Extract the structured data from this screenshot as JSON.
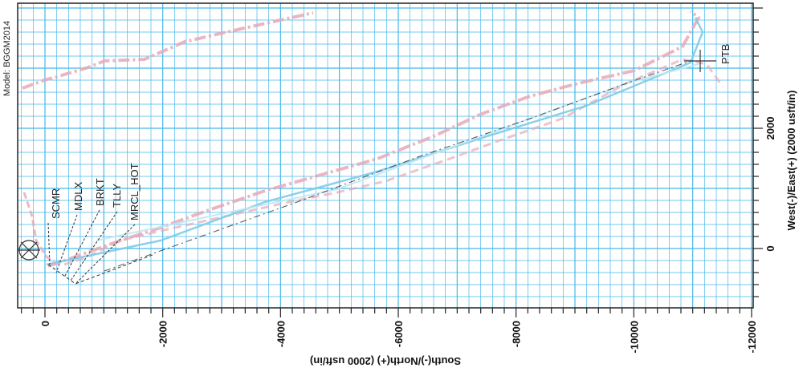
{
  "model_label": "Model: BGGM2014",
  "axes": {
    "x_label": "South(-)/North(+) (2000 usft/in)",
    "y_label": "West(-)/East(+) (2000 usft/in)",
    "x_ticks": [
      {
        "label": "0",
        "value": 0
      },
      {
        "label": "-2000",
        "value": -2000
      },
      {
        "label": "-4000",
        "value": -4000
      },
      {
        "label": "-6000",
        "value": -6000
      },
      {
        "label": "-8000",
        "value": -8000
      },
      {
        "label": "-10000",
        "value": -10000
      },
      {
        "label": "-12000",
        "value": -12000
      }
    ],
    "y_ticks": [
      {
        "label": "2000",
        "value": 2000
      },
      {
        "label": "0",
        "value": 0
      }
    ]
  },
  "formations": [
    {
      "label": "SCMR"
    },
    {
      "label": "MDLX"
    },
    {
      "label": "BRKT"
    },
    {
      "label": "TLLY"
    },
    {
      "label": "MRCL_HOT"
    }
  ],
  "target_label": "PTB",
  "colors": {
    "grid": "#45b8e8",
    "background": "#ffffff",
    "frame": "#222222",
    "plan_line": "#7fcbe8",
    "survey_line": "#e7a9b6",
    "dashed": "#333333"
  }
}
